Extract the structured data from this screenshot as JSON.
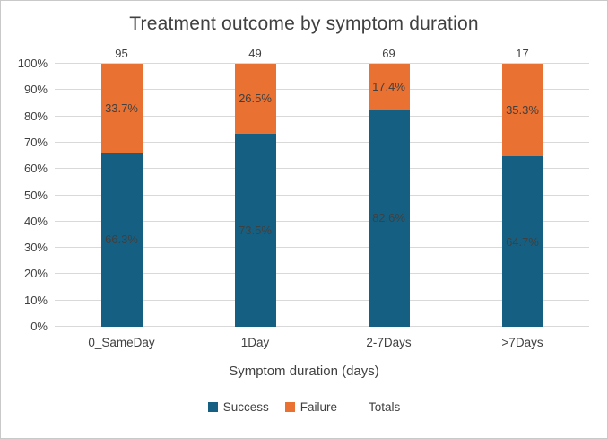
{
  "chart_data": {
    "type": "bar",
    "variant": "100%-stacked-column",
    "title": "Treatment outcome by symptom duration",
    "xlabel": "Symptom duration (days)",
    "ylabel": "",
    "ylim": [
      0,
      100
    ],
    "grid": true,
    "legend_position": "bottom",
    "y_ticks": [
      "0%",
      "10%",
      "20%",
      "30%",
      "40%",
      "50%",
      "60%",
      "70%",
      "80%",
      "90%",
      "100%"
    ],
    "categories": [
      "0_SameDay",
      "1Day",
      "2-7Days",
      ">7Days"
    ],
    "totals": [
      "95",
      "49",
      "69",
      "17"
    ],
    "series": [
      {
        "name": "Success",
        "color": "#156082",
        "values": [
          66.3,
          73.5,
          82.6,
          64.7
        ],
        "labels": [
          "66.3%",
          "73.5%",
          "82.6%",
          "64.7%"
        ]
      },
      {
        "name": "Failure",
        "color": "#E97132",
        "values": [
          33.7,
          26.5,
          17.4,
          35.3
        ],
        "labels": [
          "33.7%",
          "26.5%",
          "17.4%",
          "35.3%"
        ]
      }
    ],
    "legend": [
      {
        "label": "Success",
        "color": "#156082"
      },
      {
        "label": "Failure",
        "color": "#E97132"
      },
      {
        "label": "Totals",
        "color": "#FFFFFF"
      }
    ]
  }
}
